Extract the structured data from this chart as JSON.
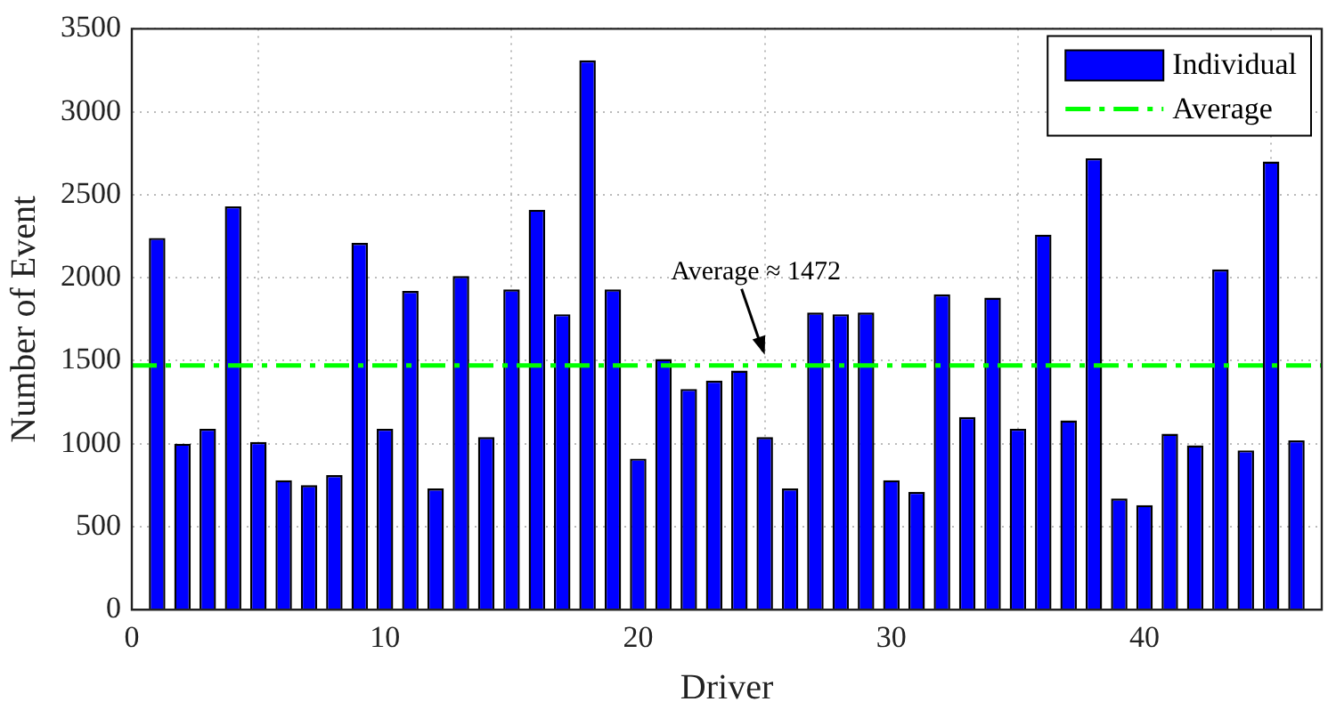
{
  "chart_data": {
    "type": "bar",
    "xlabel": "Driver",
    "ylabel": "Number of Event",
    "x": [
      1,
      2,
      3,
      4,
      5,
      6,
      7,
      8,
      9,
      10,
      11,
      12,
      13,
      14,
      15,
      16,
      17,
      18,
      19,
      20,
      21,
      22,
      23,
      24,
      25,
      26,
      27,
      28,
      29,
      30,
      31,
      32,
      33,
      34,
      35,
      36,
      37,
      38,
      39,
      40,
      41,
      42,
      43,
      44,
      45,
      46
    ],
    "series": [
      {
        "name": "Individual",
        "color": "#0000ff",
        "values": [
          2240,
          1000,
          1090,
          2430,
          1010,
          780,
          750,
          810,
          2210,
          1090,
          1920,
          730,
          2010,
          1040,
          1930,
          2410,
          1780,
          3310,
          1930,
          910,
          1510,
          1330,
          1380,
          1440,
          1040,
          730,
          1790,
          1780,
          1790,
          780,
          710,
          1900,
          1160,
          1880,
          1090,
          2260,
          1140,
          2720,
          670,
          630,
          1060,
          990,
          2050,
          960,
          2700,
          1020
        ]
      }
    ],
    "xlim": [
      0,
      47
    ],
    "xticks": [
      0,
      10,
      20,
      30,
      40
    ],
    "ylim": [
      0,
      3500
    ],
    "yticks": [
      0,
      500,
      1000,
      1500,
      2000,
      2500,
      3000,
      3500
    ],
    "ref_lines": [
      {
        "axis": "y",
        "value": 1472,
        "label": "Average",
        "color": "#00ff00",
        "line_style": "dashdot"
      }
    ],
    "annotations": [
      {
        "text": "Average ≈ 1472",
        "x": 25,
        "y": 1472
      }
    ],
    "grid": true,
    "legend": "top right"
  }
}
